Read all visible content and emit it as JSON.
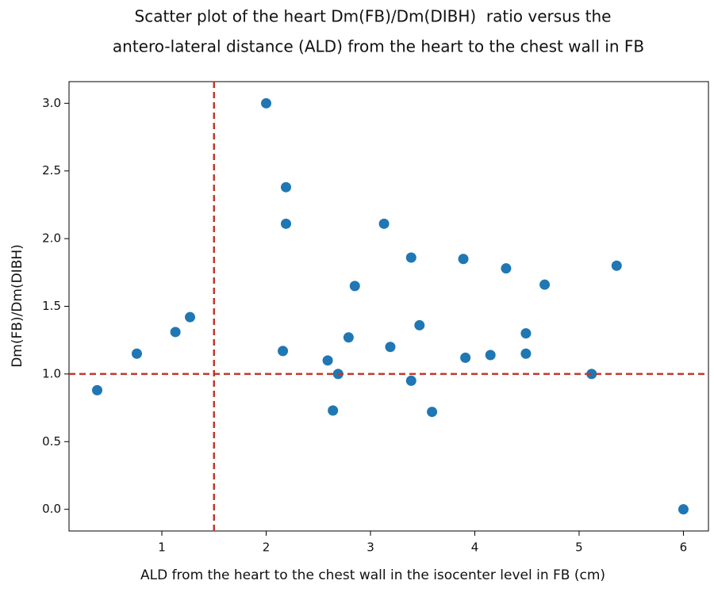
{
  "chart_data": {
    "type": "scatter",
    "title": [
      "Scatter plot of the heart Dm(FB)/Dm(DIBH)  ratio versus the",
      "antero-lateral distance (ALD) from the heart to the chest wall in FB"
    ],
    "x_label": "ALD from the heart to the chest wall in the isocenter level in FB (cm)",
    "y_label": "Dm(FB)/Dm(DIBH)",
    "x": [
      0.38,
      0.76,
      1.13,
      1.27,
      2.0,
      2.19,
      2.19,
      2.16,
      2.59,
      2.69,
      2.64,
      2.79,
      2.85,
      3.13,
      3.19,
      3.39,
      3.39,
      3.47,
      3.59,
      3.89,
      3.91,
      4.15,
      4.3,
      4.49,
      4.49,
      4.67,
      5.12,
      5.36,
      6.0
    ],
    "values": [
      0.88,
      1.15,
      1.31,
      1.42,
      3.0,
      2.38,
      2.11,
      1.17,
      1.1,
      1.0,
      0.73,
      1.27,
      1.65,
      2.11,
      1.2,
      1.86,
      0.95,
      1.36,
      0.72,
      1.85,
      1.12,
      1.14,
      1.78,
      1.3,
      1.15,
      1.66,
      1.0,
      1.8,
      0.0
    ],
    "color": "#1f77b4",
    "xlim": [
      0.11,
      6.24
    ],
    "ylim": [
      -0.16,
      3.16
    ],
    "xticks": [
      1,
      2,
      3,
      4,
      5,
      6
    ],
    "yticks": [
      {
        "value": 0,
        "label": "0.0"
      },
      {
        "value": 0.5,
        "label": "0.5"
      },
      {
        "value": 1,
        "label": "1.0"
      },
      {
        "value": 1.5,
        "label": "1.5"
      },
      {
        "value": 2,
        "label": "2.0"
      },
      {
        "value": 2.5,
        "label": "2.5"
      },
      {
        "value": 3,
        "label": "3.0"
      }
    ],
    "hlines": [
      1.0
    ],
    "vlines": [
      1.5
    ],
    "reference_line_color": "#c0392b",
    "grid": false
  }
}
